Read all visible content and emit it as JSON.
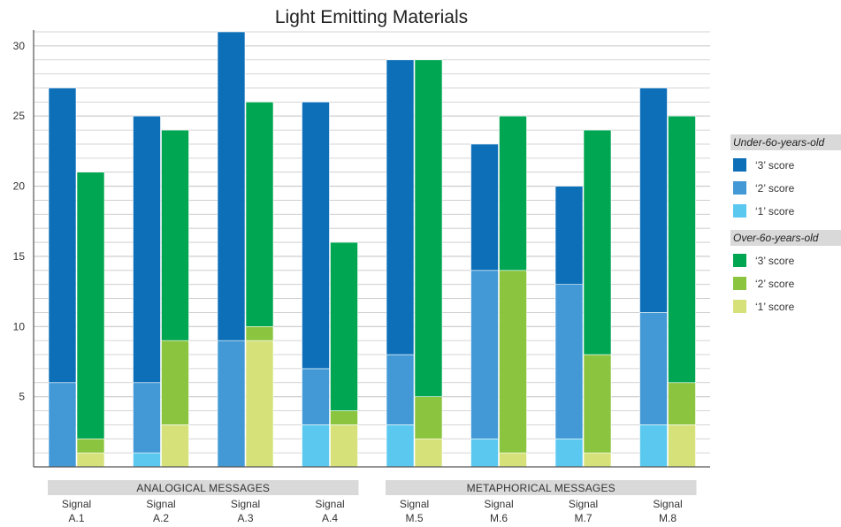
{
  "chart_data": {
    "type": "bar",
    "title": "Light Emitting Materials",
    "ylim": [
      0,
      31
    ],
    "yticks": [
      5,
      10,
      15,
      20,
      25,
      30
    ],
    "grid": true,
    "legend_position": "right",
    "categories": [
      {
        "line1": "Signal",
        "line2": "A.1"
      },
      {
        "line1": "Signal",
        "line2": "A.2"
      },
      {
        "line1": "Signal",
        "line2": "A.3"
      },
      {
        "line1": "Signal",
        "line2": "A.4"
      },
      {
        "line1": "Signal",
        "line2": "M.5"
      },
      {
        "line1": "Signal",
        "line2": "M.6"
      },
      {
        "line1": "Signal",
        "line2": "M.7"
      },
      {
        "line1": "Signal",
        "line2": "M.8"
      }
    ],
    "category_groups": [
      {
        "label": "ANALOGICAL MESSAGES",
        "categories": [
          0,
          1,
          2,
          3
        ]
      },
      {
        "label": "METAPHORICAL MESSAGES",
        "categories": [
          4,
          5,
          6,
          7
        ]
      }
    ],
    "stacks": [
      {
        "name": "Under-60-years-old",
        "series": [
          {
            "name": "'1' score",
            "color": "#5bc8ef",
            "values": [
              0,
              1,
              0,
              3,
              3,
              2,
              2,
              3
            ]
          },
          {
            "name": "'2' score",
            "color": "#4299d6",
            "values": [
              6,
              5,
              9,
              4,
              5,
              12,
              11,
              8
            ]
          },
          {
            "name": "'3' score",
            "color": "#0d6fb8",
            "values": [
              21,
              19,
              22,
              19,
              21,
              9,
              7,
              16
            ]
          }
        ]
      },
      {
        "name": "Over-60-years-old",
        "series": [
          {
            "name": "'1' score",
            "color": "#d6e17a",
            "values": [
              1,
              3,
              9,
              3,
              2,
              1,
              1,
              3
            ]
          },
          {
            "name": "'2' score",
            "color": "#8bc43f",
            "values": [
              1,
              6,
              1,
              1,
              3,
              13,
              7,
              3
            ]
          },
          {
            "name": "'3' score",
            "color": "#00a651",
            "values": [
              19,
              15,
              16,
              12,
              24,
              11,
              16,
              19
            ]
          }
        ]
      }
    ]
  },
  "legend": [
    {
      "title": "Under-6o-years-old",
      "items": [
        {
          "label": "‘3’ score",
          "color": "#0d6fb8"
        },
        {
          "label": "‘2’ score",
          "color": "#4299d6"
        },
        {
          "label": "‘1’ score",
          "color": "#5bc8ef"
        }
      ]
    },
    {
      "title": "Over-6o-years-old",
      "items": [
        {
          "label": "‘3’ score",
          "color": "#00a651"
        },
        {
          "label": "‘2’ score",
          "color": "#8bc43f"
        },
        {
          "label": "‘1’ score",
          "color": "#d6e17a"
        }
      ]
    }
  ],
  "colors": {
    "grid": "#c8c8c8",
    "axis": "#555555",
    "group_band": "#d9d9d9",
    "legend_band": "#d9d9d9"
  }
}
